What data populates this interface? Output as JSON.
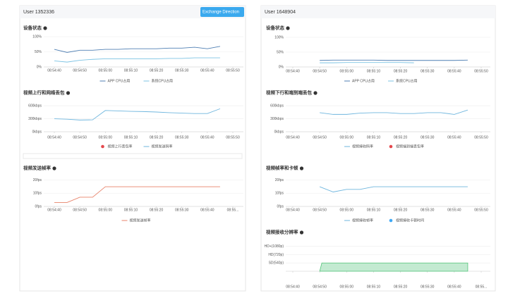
{
  "panels": [
    {
      "user": "User 1352336",
      "button": "Exchange Direction"
    },
    {
      "user": "User 1648904"
    }
  ],
  "chart_data": [
    {
      "type": "line",
      "title": "设备状态",
      "categories": [
        "08:54:40",
        null,
        "08:54:50",
        null,
        "08:55:00",
        null,
        "08:55:10",
        null,
        "08:55:20",
        null,
        "08:55:30",
        null,
        "08:55:40",
        null,
        "08:55:50"
      ],
      "series": [
        {
          "name": "APP CPU占用",
          "color": "#4f7fb3",
          "legend": "line",
          "values": [
            58,
            48,
            55,
            55,
            58,
            58,
            60,
            60,
            60,
            62,
            62,
            65,
            60,
            68,
            null
          ]
        },
        {
          "name": "系统CPU占用",
          "color": "#7cc3e3",
          "legend": "line",
          "values": [
            20,
            16,
            22,
            25,
            27,
            27,
            27,
            27,
            27,
            28,
            28,
            30,
            30,
            30,
            null
          ]
        }
      ],
      "ylim": [
        0,
        100
      ],
      "yticks": [
        {
          "value": 0,
          "label": "0%"
        },
        {
          "value": 50,
          "label": "50%"
        },
        {
          "value": 100,
          "label": "100%"
        }
      ],
      "grid": true
    },
    {
      "type": "line",
      "title": "视频上行和网络丢包",
      "categories": [
        "08:54:40",
        null,
        "08:54:50",
        null,
        "08:55:00",
        null,
        "08:55:10",
        null,
        "08:55:20",
        null,
        "08:55:30",
        null,
        "08:55:40",
        null,
        "08:55:50"
      ],
      "series": [
        {
          "name": "视频上行丢包率",
          "color": "#e5484d",
          "legend": "dot"
        },
        {
          "name": "视频发送码率",
          "color": "#6fb6de",
          "legend": "line",
          "values": [
            300,
            290,
            270,
            275,
            490,
            480,
            470,
            465,
            455,
            440,
            430,
            420,
            420,
            530,
            null
          ]
        }
      ],
      "ylim": [
        0,
        650
      ],
      "yticks": [
        {
          "value": 0,
          "label": "0kbps"
        },
        {
          "value": 300,
          "label": "300kbps"
        },
        {
          "value": 600,
          "label": "600kbps"
        }
      ],
      "grid": true
    },
    {
      "type": "line",
      "title": "视频发送帧率",
      "categories": [
        "08:54:40",
        null,
        "08:54:50",
        null,
        "08:55:00",
        null,
        "08:55:10",
        null,
        "08:55:20",
        null,
        "08:55:30",
        null,
        "08:55:40",
        null,
        "08:55..."
      ],
      "series": [
        {
          "name": "视频发送帧率",
          "color": "#e8826a",
          "legend": "line",
          "values": [
            3,
            3,
            7,
            7,
            15,
            15,
            15,
            15,
            15,
            15,
            15,
            15,
            15,
            15,
            null
          ]
        }
      ],
      "ylim": [
        0,
        22
      ],
      "yticks": [
        {
          "value": 0,
          "label": "0fps"
        },
        {
          "value": 10,
          "label": "10fps"
        },
        {
          "value": 20,
          "label": "20fps"
        }
      ],
      "grid": true
    },
    {
      "type": "line",
      "title": "设备状态",
      "categories": [
        "08:54:40",
        null,
        "08:54:50",
        null,
        "08:55:00",
        null,
        "08:55:10",
        null,
        "08:55:20",
        null,
        "08:55:30",
        null,
        "08:55:40",
        null,
        "08:55:50"
      ],
      "series": [
        {
          "name": "APP CPU占用",
          "color": "#4f7fb3",
          "legend": "line",
          "values": [
            null,
            null,
            22,
            23,
            23,
            23,
            23,
            22,
            22,
            22,
            22,
            22,
            22,
            23,
            null
          ]
        },
        {
          "name": "系统CPU占用",
          "color": "#7cc3e3",
          "legend": "line",
          "values": [
            null,
            null,
            14,
            14,
            15,
            15,
            15,
            15,
            15,
            14,
            null,
            null,
            null,
            null,
            null
          ]
        }
      ],
      "ylim": [
        0,
        100
      ],
      "yticks": [
        {
          "value": 0,
          "label": "0%"
        },
        {
          "value": 50,
          "label": "50%"
        },
        {
          "value": 100,
          "label": "100%"
        }
      ],
      "grid": true
    },
    {
      "type": "line",
      "title": "视频下行和端到端丢包",
      "categories": [
        "08:54:40",
        null,
        "08:54:50",
        null,
        "08:55:00",
        null,
        "08:55:10",
        null,
        "08:55:20",
        null,
        "08:55:30",
        null,
        "08:55:40",
        null,
        "08:55:50"
      ],
      "series": [
        {
          "name": "视频接收码率",
          "color": "#6fb6de",
          "legend": "line",
          "values": [
            null,
            null,
            440,
            400,
            400,
            430,
            440,
            440,
            420,
            420,
            440,
            440,
            400,
            500,
            null
          ]
        },
        {
          "name": "视频端到端丢包率",
          "color": "#e5484d",
          "legend": "dot"
        }
      ],
      "ylim": [
        0,
        650
      ],
      "yticks": [
        {
          "value": 0,
          "label": "0kbps"
        },
        {
          "value": 300,
          "label": "300kbps"
        },
        {
          "value": 600,
          "label": "600kbps"
        }
      ],
      "grid": true
    },
    {
      "type": "line",
      "title": "视频帧率和卡顿",
      "categories": [
        "08:54:40",
        null,
        "08:54:50",
        null,
        "08:55:00",
        null,
        "08:55:10",
        null,
        "08:55:20",
        null,
        "08:55:30",
        null,
        "08:55:40",
        null,
        "08:55:50"
      ],
      "series": [
        {
          "name": "视频接收帧率",
          "color": "#6fb6de",
          "legend": "line",
          "values": [
            null,
            null,
            15,
            11,
            13,
            13,
            15,
            15,
            15,
            15,
            15,
            15,
            15,
            15,
            null
          ]
        },
        {
          "name": "视频接收卡顿时间",
          "color": "#3fa9f5",
          "legend": "dot"
        }
      ],
      "ylim": [
        0,
        22
      ],
      "yticks": [
        {
          "value": 0,
          "label": "0fps"
        },
        {
          "value": 10,
          "label": "10fps"
        },
        {
          "value": 20,
          "label": "20fps"
        }
      ],
      "grid": true
    },
    {
      "type": "area",
      "title": "视频接收分辨率",
      "categories": [
        "08:54:40",
        null,
        "08:54:50",
        null,
        "08:55:00",
        null,
        "08:55:10",
        null,
        "08:55:20",
        null,
        "08:55:30",
        null,
        "08:55:40",
        null,
        "08:55..."
      ],
      "series": [
        {
          "name": "",
          "color": "#52c47a",
          "values": [
            null,
            null,
            1,
            1,
            1,
            1,
            1,
            1,
            1,
            1,
            1,
            1,
            1,
            1,
            null
          ]
        }
      ],
      "ylim": [
        0,
        3.4
      ],
      "yticks": [
        {
          "value": 1,
          "label": "SD(540p)"
        },
        {
          "value": 2,
          "label": "HD(720p)"
        },
        {
          "value": 3,
          "label": "HD+(1080p)"
        }
      ],
      "grid": true
    }
  ]
}
